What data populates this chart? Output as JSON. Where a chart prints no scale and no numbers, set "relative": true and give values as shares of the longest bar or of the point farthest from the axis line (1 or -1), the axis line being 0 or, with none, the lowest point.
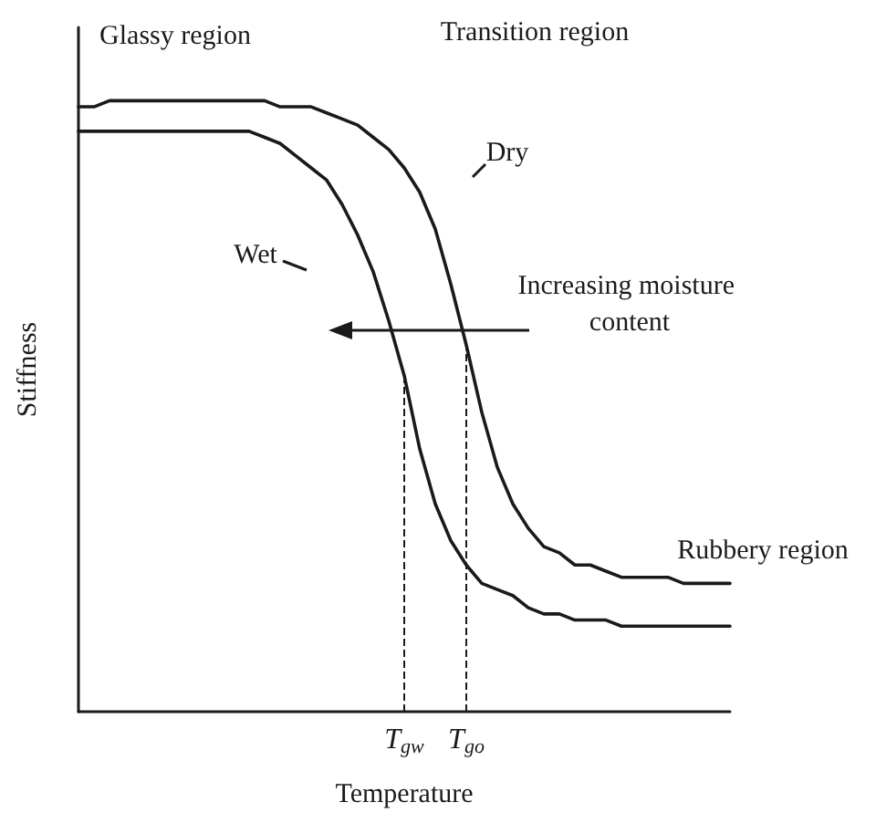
{
  "chart_data": {
    "type": "line",
    "relative": true,
    "xlabel": "Temperature",
    "ylabel": "Stiffness",
    "categories": [
      null,
      null,
      null,
      null,
      null,
      null,
      null,
      null,
      null,
      null,
      null,
      null,
      null,
      null,
      null,
      null,
      null,
      null,
      null,
      null,
      null,
      "T$_{gw}$",
      null,
      null,
      null,
      "T$_{go}$",
      null,
      null,
      null,
      null,
      null,
      null,
      null,
      null,
      null,
      null,
      null,
      null,
      null,
      null,
      null,
      null,
      null
    ],
    "series": [
      {
        "name": "Dry",
        "color": "#1a1a1a",
        "values": [
          0.99,
          0.99,
          1.0,
          1.0,
          1.0,
          1.0,
          1.0,
          1.0,
          1.0,
          1.0,
          1.0,
          1.0,
          1.0,
          0.99,
          0.99,
          0.99,
          0.98,
          0.97,
          0.96,
          0.94,
          0.92,
          0.89,
          0.85,
          0.79,
          0.7,
          0.6,
          0.49,
          0.4,
          0.34,
          0.3,
          0.27,
          0.26,
          0.24,
          0.24,
          0.23,
          0.22,
          0.22,
          0.22,
          0.22,
          0.21,
          0.21,
          0.21,
          0.21
        ]
      },
      {
        "name": "Wet",
        "color": "#1a1a1a",
        "values": [
          0.95,
          0.95,
          0.95,
          0.95,
          0.95,
          0.95,
          0.95,
          0.95,
          0.95,
          0.95,
          0.95,
          0.95,
          0.94,
          0.93,
          0.91,
          0.89,
          0.87,
          0.83,
          0.78,
          0.72,
          0.64,
          0.55,
          0.43,
          0.34,
          0.28,
          0.24,
          0.21,
          0.2,
          0.19,
          0.17,
          0.16,
          0.16,
          0.15,
          0.15,
          0.15,
          0.14,
          0.14,
          0.14,
          0.14,
          0.14,
          0.14,
          0.14,
          0.14
        ]
      }
    ],
    "ref_lines": [
      {
        "axis": "x",
        "value": "T$_{gw}$",
        "line_style": "dashed",
        "color": "#1a1a1a"
      },
      {
        "axis": "x",
        "value": "T$_{go}$",
        "line_style": "dashed",
        "color": "#1a1a1a"
      }
    ],
    "annotations": [
      "Glassy region",
      "Transition region",
      "Increasing moisture content",
      "Rubbery region"
    ],
    "line_style": "solid"
  }
}
